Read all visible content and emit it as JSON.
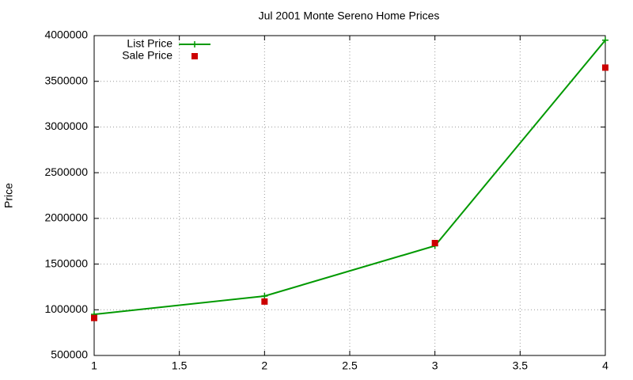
{
  "chart_data": {
    "type": "line",
    "title": "Jul 2001 Monte Sereno Home Prices",
    "ylabel": "Price",
    "x": [
      1,
      2,
      3,
      4
    ],
    "series": [
      {
        "name": "List Price",
        "color": "#009900",
        "line": true,
        "marker": "plus",
        "values": [
          950000,
          1150000,
          1700000,
          3950000
        ]
      },
      {
        "name": "Sale Price",
        "color": "#cc0000",
        "line": false,
        "marker": "square",
        "values": [
          910000,
          1090000,
          1730000,
          3650000
        ]
      }
    ],
    "xlim": [
      1,
      4
    ],
    "xticks": [
      1,
      1.5,
      2,
      2.5,
      3,
      3.5,
      4
    ],
    "ylim": [
      500000,
      4000000
    ],
    "yticks": [
      500000,
      1000000,
      1500000,
      2000000,
      2500000,
      3000000,
      3500000,
      4000000
    ],
    "grid": true,
    "legend": "top-left"
  }
}
